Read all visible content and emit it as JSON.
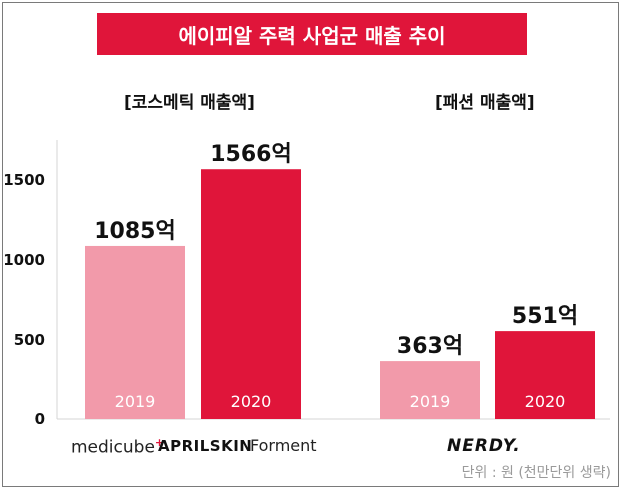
{
  "title": "에이피알 주력 사업군 매출 추이",
  "unit_note": "단위 : 원 (천만단위 생략)",
  "chart_data": [
    {
      "type": "bar",
      "title": "[코스메틱 매출액]",
      "categories": [
        "2019",
        "2020"
      ],
      "values": [
        1085,
        1566
      ],
      "data_labels": [
        "1085억",
        "1566억"
      ],
      "colors": [
        "#f29aaa",
        "#e0153a"
      ],
      "ylim": [
        0,
        1700
      ],
      "yticks": [
        "0",
        "500",
        "1000",
        "1500"
      ],
      "brands": {
        "medicube": "medicube",
        "medicube_mark": "+",
        "aprilskin": "APRILSKIN",
        "forment": "Forment"
      }
    },
    {
      "type": "bar",
      "title": "[패션 매출액]",
      "categories": [
        "2019",
        "2020"
      ],
      "values": [
        363,
        551
      ],
      "data_labels": [
        "363억",
        "551억"
      ],
      "colors": [
        "#f29aaa",
        "#e0153a"
      ],
      "ylim": [
        0,
        1700
      ],
      "brands": {
        "nerdy": "NERDY."
      }
    }
  ]
}
